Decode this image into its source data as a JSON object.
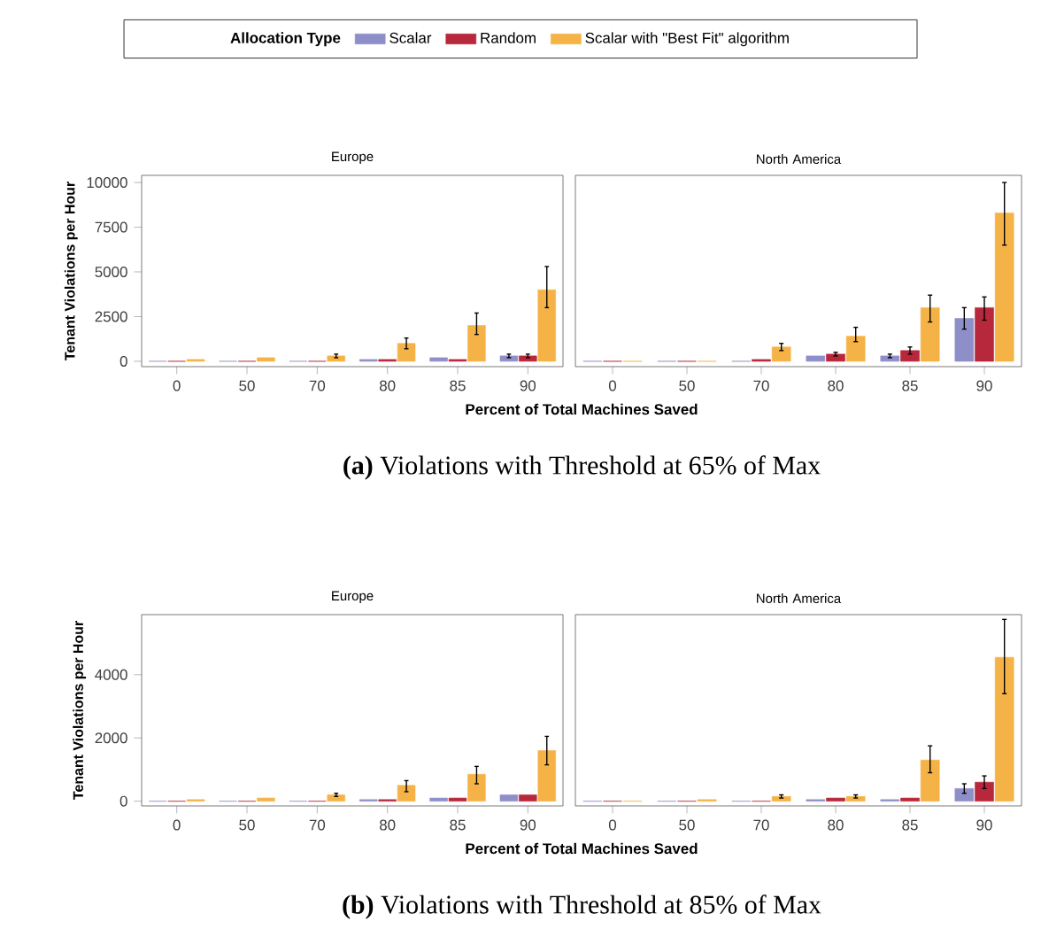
{
  "chart_data": [
    {
      "type": "bar",
      "title": "Europe",
      "xlabel": "Percent of Total Machines Saved",
      "ylabel": "Tenant Violations per Hour",
      "legend": "top",
      "legend_title": "Allocation Type",
      "annotations": [
        "**(a)** Violations with Threshold at 65% of Max"
      ],
      "categories": [
        "0",
        "50",
        "70",
        "80",
        "85",
        "90"
      ],
      "ylim": [
        -300,
        10400
      ],
      "yticks": [
        0,
        2500,
        5000,
        7500,
        10000
      ],
      "series": [
        {
          "name": "Scalar",
          "color": "#8e8fc9",
          "values": [
            0,
            0,
            0,
            100,
            200,
            300
          ],
          "errors": [
            null,
            null,
            null,
            null,
            null,
            100
          ]
        },
        {
          "name": "Random",
          "color": "#b8283c",
          "values": [
            0,
            0,
            0,
            100,
            100,
            300
          ],
          "errors": [
            null,
            null,
            null,
            null,
            null,
            100
          ]
        },
        {
          "name": "Scalar with \"Best Fit\" algorithm",
          "color": "#f5b347",
          "values": [
            100,
            200,
            300,
            1000,
            2000,
            4000
          ],
          "errors": [
            null,
            null,
            100,
            [
              700,
              1300
            ],
            [
              1500,
              2700
            ],
            [
              3000,
              5300
            ]
          ]
        }
      ]
    },
    {
      "type": "bar",
      "title": "North America",
      "tick_labels": "x",
      "categories": [
        "0",
        "50",
        "70",
        "80",
        "85",
        "90"
      ],
      "ylim": [
        -300,
        10400
      ],
      "yticks": [
        0,
        2500,
        5000,
        7500,
        10000
      ],
      "series": [
        {
          "color": "#8e8fc9",
          "values": [
            0,
            0,
            0,
            300,
            300,
            2400
          ],
          "errors": [
            null,
            null,
            null,
            null,
            100,
            [
              1800,
              3000
            ]
          ]
        },
        {
          "color": "#b8283c",
          "values": [
            0,
            0,
            100,
            400,
            600,
            3000
          ],
          "errors": [
            null,
            null,
            null,
            100,
            200,
            [
              2300,
              3600
            ]
          ]
        },
        {
          "color": "#f5b347",
          "values": [
            0,
            0,
            800,
            1400,
            3000,
            8300
          ],
          "errors": [
            null,
            null,
            200,
            [
              1100,
              1900
            ],
            [
              2200,
              3700
            ],
            [
              6500,
              10000
            ]
          ]
        }
      ]
    },
    {
      "type": "bar",
      "title": "Europe",
      "xlabel": "Percent of Total Machines Saved",
      "ylabel": "Tenant Violations per Hour",
      "annotations": [
        "**(b)** Violations with Threshold at 85% of Max"
      ],
      "categories": [
        "0",
        "50",
        "70",
        "80",
        "85",
        "90"
      ],
      "ylim": [
        -150,
        5900
      ],
      "yticks": [
        0,
        2000,
        4000
      ],
      "series": [
        {
          "color": "#8e8fc9",
          "values": [
            0,
            0,
            0,
            50,
            100,
            200
          ]
        },
        {
          "color": "#b8283c",
          "values": [
            0,
            0,
            0,
            50,
            100,
            200
          ]
        },
        {
          "color": "#f5b347",
          "values": [
            50,
            100,
            200,
            500,
            850,
            1600
          ],
          "errors": [
            null,
            null,
            50,
            [
              300,
              650
            ],
            [
              550,
              1100
            ],
            [
              1150,
              2050
            ]
          ]
        }
      ]
    },
    {
      "type": "bar",
      "title": "North America",
      "tick_labels": "x",
      "categories": [
        "0",
        "50",
        "70",
        "80",
        "85",
        "90"
      ],
      "ylim": [
        -150,
        5900
      ],
      "yticks": [
        0,
        2000,
        4000
      ],
      "series": [
        {
          "color": "#8e8fc9",
          "values": [
            0,
            0,
            0,
            50,
            50,
            400
          ],
          "errors": [
            null,
            null,
            null,
            null,
            null,
            150
          ]
        },
        {
          "color": "#b8283c",
          "values": [
            0,
            0,
            0,
            100,
            100,
            600
          ],
          "errors": [
            null,
            null,
            null,
            null,
            null,
            [
              400,
              800
            ]
          ]
        },
        {
          "color": "#f5b347",
          "values": [
            0,
            50,
            150,
            150,
            1300,
            4550
          ],
          "errors": [
            null,
            null,
            50,
            50,
            [
              900,
              1750
            ],
            [
              3400,
              5750
            ]
          ]
        }
      ]
    }
  ]
}
